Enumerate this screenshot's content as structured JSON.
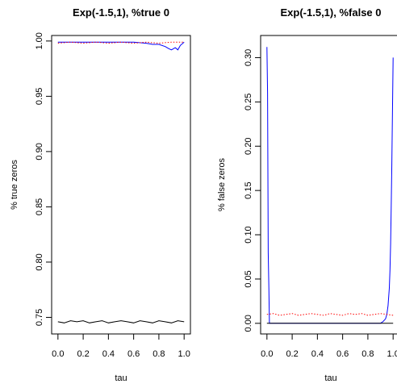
{
  "chart_data": [
    {
      "type": "line",
      "title": "Exp(-1.5,1), %true 0",
      "xlabel": "tau",
      "ylabel": "% true zeros",
      "xlim": [
        -0.05,
        1.05
      ],
      "ylim": [
        0.735,
        1.005
      ],
      "x_ticks": [
        "0.0",
        "0.2",
        "0.4",
        "0.6",
        "0.8",
        "1.0"
      ],
      "y_ticks": [
        "0.75",
        "0.80",
        "0.85",
        "0.90",
        "0.95",
        "1.00"
      ],
      "grid": false,
      "legend": "none",
      "series": [
        {
          "color": "#0000ff",
          "style": "solid",
          "x": [
            0.0,
            0.1,
            0.2,
            0.3,
            0.4,
            0.5,
            0.6,
            0.7,
            0.75,
            0.8,
            0.85,
            0.88,
            0.9,
            0.93,
            0.95,
            0.97,
            1.0
          ],
          "y": [
            0.999,
            0.999,
            0.999,
            0.999,
            0.999,
            0.999,
            0.999,
            0.998,
            0.997,
            0.997,
            0.995,
            0.993,
            0.992,
            0.994,
            0.992,
            0.996,
            0.999
          ]
        },
        {
          "color": "#ff0000",
          "style": "dotted",
          "x": [
            0.0,
            0.1,
            0.2,
            0.3,
            0.4,
            0.5,
            0.6,
            0.7,
            0.8,
            0.9,
            1.0
          ],
          "y": [
            0.998,
            0.999,
            0.998,
            0.999,
            0.998,
            0.999,
            0.998,
            0.999,
            0.998,
            0.999,
            0.999
          ]
        },
        {
          "color": "#000000",
          "style": "solid",
          "x": [
            0.0,
            0.05,
            0.1,
            0.15,
            0.2,
            0.25,
            0.3,
            0.35,
            0.4,
            0.45,
            0.5,
            0.55,
            0.6,
            0.65,
            0.7,
            0.75,
            0.8,
            0.85,
            0.9,
            0.95,
            1.0
          ],
          "y": [
            0.746,
            0.745,
            0.747,
            0.746,
            0.747,
            0.745,
            0.746,
            0.747,
            0.745,
            0.746,
            0.747,
            0.746,
            0.745,
            0.747,
            0.746,
            0.745,
            0.747,
            0.746,
            0.745,
            0.747,
            0.746
          ]
        }
      ]
    },
    {
      "type": "line",
      "title": "Exp(-1.5,1), %false 0",
      "xlabel": "tau",
      "ylabel": "% false zeros",
      "xlim": [
        -0.05,
        1.05
      ],
      "ylim": [
        -0.012,
        0.325
      ],
      "x_ticks": [
        "0.0",
        "0.2",
        "0.4",
        "0.6",
        "0.8",
        "1.0"
      ],
      "y_ticks": [
        "0.00",
        "0.05",
        "0.10",
        "0.15",
        "0.20",
        "0.25",
        "0.30"
      ],
      "grid": false,
      "legend": "none",
      "series": [
        {
          "color": "#0000ff",
          "style": "solid",
          "x": [
            0.0,
            0.005,
            0.01,
            0.015,
            0.02,
            0.025,
            0.03,
            0.9,
            0.92,
            0.94,
            0.95,
            0.96,
            0.97,
            0.975,
            0.98,
            0.985,
            0.99,
            0.995,
            1.0
          ],
          "y": [
            0.312,
            0.26,
            0.08,
            0.04,
            0.0,
            0.0,
            0.0,
            0.0,
            0.002,
            0.005,
            0.01,
            0.02,
            0.04,
            0.06,
            0.09,
            0.13,
            0.18,
            0.24,
            0.3
          ]
        },
        {
          "color": "#ff0000",
          "style": "dotted",
          "x": [
            0.0,
            0.05,
            0.1,
            0.15,
            0.2,
            0.25,
            0.3,
            0.35,
            0.4,
            0.45,
            0.5,
            0.55,
            0.6,
            0.65,
            0.7,
            0.75,
            0.8,
            0.85,
            0.9,
            0.95,
            1.0
          ],
          "y": [
            0.01,
            0.011,
            0.009,
            0.01,
            0.011,
            0.009,
            0.01,
            0.011,
            0.01,
            0.009,
            0.011,
            0.01,
            0.009,
            0.011,
            0.01,
            0.011,
            0.009,
            0.01,
            0.011,
            0.01,
            0.009
          ]
        },
        {
          "color": "#000000",
          "style": "solid",
          "x": [
            0.0,
            1.0
          ],
          "y": [
            0.0,
            0.0
          ]
        }
      ]
    }
  ]
}
